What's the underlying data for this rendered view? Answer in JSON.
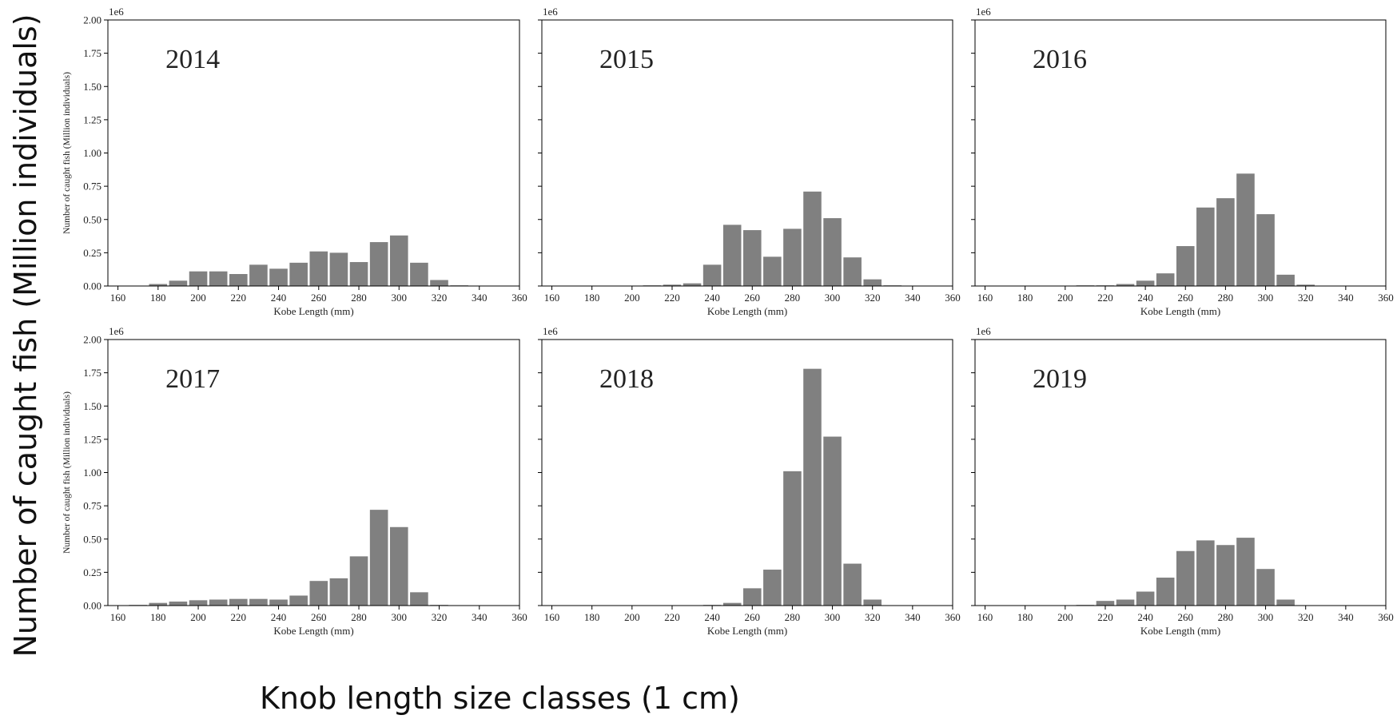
{
  "figure": {
    "ylabel": "Number of caught fish (Million individuals)",
    "xlabel": "Knob length size classes (1 cm)"
  },
  "chart_data": [
    {
      "type": "bar",
      "title": "2014",
      "xlabel": "Kobe Length (mm)",
      "ylabel": "Number of caught fish (Million individuals)",
      "offset_label": "1e6",
      "xlim": [
        155,
        360
      ],
      "ylim": [
        0,
        2.0
      ],
      "xticks": [
        "160",
        "180",
        "200",
        "220",
        "240",
        "260",
        "280",
        "300",
        "320",
        "340",
        "360"
      ],
      "yticks": [
        "0.00",
        "0.25",
        "0.50",
        "0.75",
        "1.00",
        "1.25",
        "1.50",
        "1.75",
        "2.00"
      ],
      "x": [
        160,
        170,
        180,
        190,
        200,
        210,
        220,
        230,
        240,
        250,
        260,
        270,
        280,
        290,
        300,
        310,
        320,
        330,
        340,
        350
      ],
      "values": [
        0.0,
        0.0,
        0.015,
        0.04,
        0.11,
        0.11,
        0.09,
        0.16,
        0.13,
        0.175,
        0.26,
        0.25,
        0.18,
        0.33,
        0.38,
        0.175,
        0.045,
        0.005,
        0.0,
        0.0
      ],
      "bar_color": "#808080"
    },
    {
      "type": "bar",
      "title": "2015",
      "xlabel": "Kobe Length (mm)",
      "ylabel": "",
      "offset_label": "1e6",
      "xlim": [
        155,
        360
      ],
      "ylim": [
        0,
        2.0
      ],
      "xticks": [
        "160",
        "180",
        "200",
        "220",
        "240",
        "260",
        "280",
        "300",
        "320",
        "340",
        "360"
      ],
      "yticks": [],
      "x": [
        160,
        170,
        180,
        190,
        200,
        210,
        220,
        230,
        240,
        250,
        260,
        270,
        280,
        290,
        300,
        310,
        320,
        330,
        340,
        350
      ],
      "values": [
        0.0,
        0.0,
        0.0,
        0.0,
        0.0,
        0.005,
        0.01,
        0.02,
        0.16,
        0.46,
        0.42,
        0.22,
        0.43,
        0.71,
        0.51,
        0.215,
        0.05,
        0.005,
        0.0,
        0.0
      ],
      "bar_color": "#808080"
    },
    {
      "type": "bar",
      "title": "2016",
      "xlabel": "Kobe Length (mm)",
      "ylabel": "",
      "offset_label": "1e6",
      "xlim": [
        155,
        360
      ],
      "ylim": [
        0,
        2.0
      ],
      "xticks": [
        "160",
        "180",
        "200",
        "220",
        "240",
        "260",
        "280",
        "300",
        "320",
        "340",
        "360"
      ],
      "yticks": [],
      "x": [
        160,
        170,
        180,
        190,
        200,
        210,
        220,
        230,
        240,
        250,
        260,
        270,
        280,
        290,
        300,
        310,
        320,
        330,
        340,
        350
      ],
      "values": [
        0.0,
        0.0,
        0.0,
        0.0,
        0.0,
        0.005,
        0.005,
        0.015,
        0.04,
        0.095,
        0.3,
        0.59,
        0.66,
        0.845,
        0.54,
        0.085,
        0.01,
        0.0,
        0.0,
        0.0
      ],
      "bar_color": "#808080"
    },
    {
      "type": "bar",
      "title": "2017",
      "xlabel": "Kobe Length (mm)",
      "ylabel": "Number of caught fish (Million individuals)",
      "offset_label": "1e6",
      "xlim": [
        155,
        360
      ],
      "ylim": [
        0,
        2.0
      ],
      "xticks": [
        "160",
        "180",
        "200",
        "220",
        "240",
        "260",
        "280",
        "300",
        "320",
        "340",
        "360"
      ],
      "yticks": [
        "0.00",
        "0.25",
        "0.50",
        "0.75",
        "1.00",
        "1.25",
        "1.50",
        "1.75",
        "2.00"
      ],
      "x": [
        160,
        170,
        180,
        190,
        200,
        210,
        220,
        230,
        240,
        250,
        260,
        270,
        280,
        290,
        300,
        310,
        320,
        330,
        340,
        350
      ],
      "values": [
        0.0,
        0.005,
        0.02,
        0.03,
        0.04,
        0.045,
        0.05,
        0.05,
        0.045,
        0.075,
        0.185,
        0.205,
        0.37,
        0.72,
        0.59,
        0.1,
        0.005,
        0.0,
        0.0,
        0.0
      ],
      "bar_color": "#808080"
    },
    {
      "type": "bar",
      "title": "2018",
      "xlabel": "Kobe Length (mm)",
      "ylabel": "",
      "offset_label": "1e6",
      "xlim": [
        155,
        360
      ],
      "ylim": [
        0,
        2.0
      ],
      "xticks": [
        "160",
        "180",
        "200",
        "220",
        "240",
        "260",
        "280",
        "300",
        "320",
        "340",
        "360"
      ],
      "yticks": [],
      "x": [
        160,
        170,
        180,
        190,
        200,
        210,
        220,
        230,
        240,
        250,
        260,
        270,
        280,
        290,
        300,
        310,
        320,
        330,
        340,
        350
      ],
      "values": [
        0.0,
        0.0,
        0.0,
        0.0,
        0.0,
        0.0,
        0.0,
        0.0,
        0.005,
        0.02,
        0.13,
        0.27,
        1.01,
        1.78,
        1.27,
        0.315,
        0.045,
        0.0,
        0.0,
        0.0
      ],
      "bar_color": "#808080"
    },
    {
      "type": "bar",
      "title": "2019",
      "xlabel": "Kobe Length (mm)",
      "ylabel": "",
      "offset_label": "1e6",
      "xlim": [
        155,
        360
      ],
      "ylim": [
        0,
        2.0
      ],
      "xticks": [
        "160",
        "180",
        "200",
        "220",
        "240",
        "260",
        "280",
        "300",
        "320",
        "340",
        "360"
      ],
      "yticks": [],
      "x": [
        160,
        170,
        180,
        190,
        200,
        210,
        220,
        230,
        240,
        250,
        260,
        270,
        280,
        290,
        300,
        310,
        320,
        330,
        340,
        350
      ],
      "values": [
        0.0,
        0.0,
        0.0,
        0.0,
        0.0,
        0.005,
        0.035,
        0.045,
        0.105,
        0.21,
        0.41,
        0.49,
        0.455,
        0.51,
        0.275,
        0.045,
        0.0,
        0.0,
        0.0,
        0.0
      ],
      "bar_color": "#808080"
    }
  ]
}
